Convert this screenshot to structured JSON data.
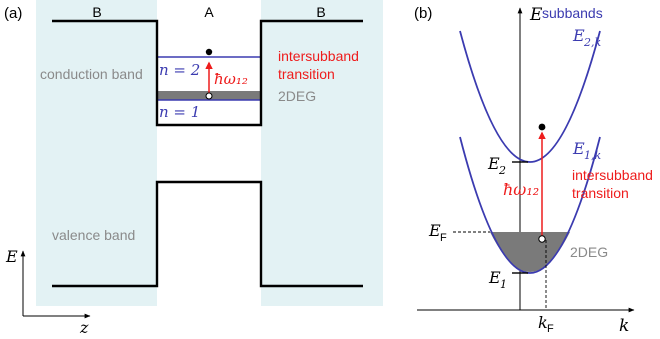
{
  "panel_a": {
    "panel_label": "(a)",
    "region_left": "B",
    "region_mid": "A",
    "region_right": "B",
    "conduction_band": "conduction band",
    "valence_band": "valence band",
    "level_n2": "n = 2",
    "level_n1": "n = 1",
    "photon": "ħω₁₂",
    "transition_line1": "intersubband",
    "transition_line2": "transition",
    "gas_label": "2DEG",
    "axis_y": "E",
    "axis_x": "z"
  },
  "panel_b": {
    "panel_label": "(b)",
    "axis_y": "E",
    "axis_x": "k",
    "legend": "subbands",
    "curve_upper": "E2,k",
    "curve_lower": "E1,k",
    "level_e2": "E2",
    "level_e1": "E1",
    "fermi_energy": "EF",
    "fermi_k": "kF",
    "photon": "ħω₁₂",
    "transition_line1": "intersubband",
    "transition_line2": "transition",
    "gas_label": "2DEG"
  },
  "colors": {
    "barrier_fill": "#e3f2f4",
    "subband_blue": "#3b3bb0",
    "transition_red": "#ee1c1c",
    "filled_gray": "#7a7a7a",
    "label_gray": "#8a8a8a",
    "line_black": "#000000"
  }
}
